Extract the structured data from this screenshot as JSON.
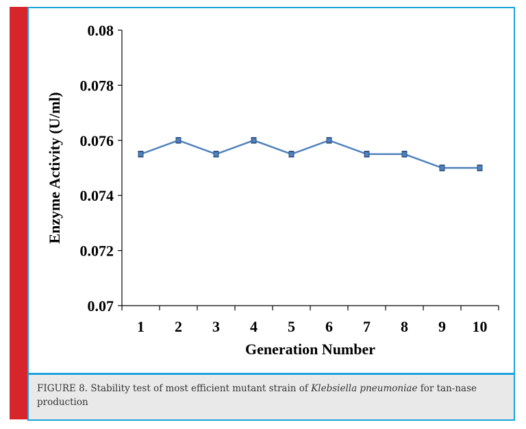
{
  "colors": {
    "accent_red": "#d7262b",
    "frame_blue": "#1aa3dc",
    "series_line": "#4f81bd",
    "caption_bg": "#e9e9e9"
  },
  "caption": {
    "prefix": "FIGURE 8. Stability test of most efficient mutant strain of ",
    "species": "Klebsiella pneumoniae",
    "suffix": " for tan-nase production"
  },
  "chart_data": {
    "type": "line",
    "title": "",
    "xlabel": "Generation Number",
    "ylabel": "Enzyme Activity (U/ml)",
    "categories": [
      "1",
      "2",
      "3",
      "4",
      "5",
      "6",
      "7",
      "8",
      "9",
      "10"
    ],
    "series": [
      {
        "values": [
          0.0755,
          0.076,
          0.0755,
          0.076,
          0.0755,
          0.076,
          0.0755,
          0.0755,
          0.075,
          0.075
        ],
        "error": [
          0.0001,
          0.0001,
          0.0001,
          0.0001,
          0.0001,
          0.0001,
          0.0001,
          0.0001,
          0.0001,
          0.0001
        ]
      }
    ],
    "ylim": [
      0.07,
      0.08
    ],
    "yticks": [
      "0.07",
      "0.072",
      "0.074",
      "0.076",
      "0.078",
      "0.08"
    ],
    "grid": false,
    "legend": "none"
  }
}
